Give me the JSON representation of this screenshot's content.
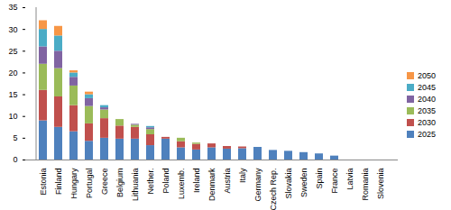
{
  "chart_data": {
    "type": "bar",
    "stacked": true,
    "legend": "right",
    "grid": false,
    "categories": [
      "Estonia",
      "Finland",
      "Hungary",
      "Portugal",
      "Greece",
      "Belgium",
      "Lithuania",
      "Nether.",
      "Poland",
      "Luxemb.",
      "Ireland",
      "Denmark",
      "Austria",
      "Italy",
      "Germany",
      "Czech Rep.",
      "Slovakia",
      "Sweden",
      "Spain",
      "France",
      "Latvia",
      "Romania",
      "Slovenia"
    ],
    "ylim": [
      0,
      35
    ],
    "yticks": [
      0,
      5,
      10,
      15,
      20,
      25,
      30,
      35
    ],
    "series": [
      {
        "name": "2025",
        "color": "#4f81bd",
        "values": [
          9,
          7.5,
          6.5,
          4.3,
          5,
          4.8,
          4.8,
          3.3,
          4.8,
          2.8,
          2.3,
          2.8,
          2.5,
          2.6,
          2.9,
          2.2,
          2.0,
          1.7,
          1.4,
          0.9,
          0,
          0,
          0
        ]
      },
      {
        "name": "2030",
        "color": "#c0504d",
        "values": [
          7,
          7,
          6,
          4,
          4.5,
          3,
          2.7,
          2.5,
          0.4,
          1.4,
          1.3,
          0.9,
          0.6,
          0.4,
          0,
          0,
          0,
          0,
          0,
          0,
          0,
          0,
          0
        ]
      },
      {
        "name": "2035",
        "color": "#9bbb59",
        "values": [
          6,
          6.5,
          4.5,
          4,
          2,
          1.5,
          0.5,
          1.2,
          0,
          0.8,
          0.3,
          0,
          0,
          0,
          0,
          0,
          0,
          0,
          0,
          0,
          0,
          0,
          0
        ]
      },
      {
        "name": "2040",
        "color": "#8064a2",
        "values": [
          4,
          4,
          2,
          1.8,
          0.5,
          0,
          0.2,
          0.4,
          0,
          0,
          0,
          0,
          0,
          0,
          0,
          0,
          0,
          0,
          0,
          0,
          0,
          0,
          0
        ]
      },
      {
        "name": "2045",
        "color": "#4bacc6",
        "values": [
          4,
          3.5,
          1,
          0.9,
          0.5,
          0,
          0,
          0.3,
          0,
          0,
          0,
          0,
          0,
          0,
          0,
          0,
          0,
          0,
          0,
          0,
          0,
          0,
          0
        ]
      },
      {
        "name": "2050",
        "color": "#f79646",
        "values": [
          2,
          2.2,
          0.5,
          0.6,
          0,
          0,
          0,
          0,
          0,
          0,
          0,
          0,
          0,
          0,
          0,
          0,
          0,
          0,
          0,
          0,
          0,
          0,
          0
        ]
      }
    ]
  }
}
